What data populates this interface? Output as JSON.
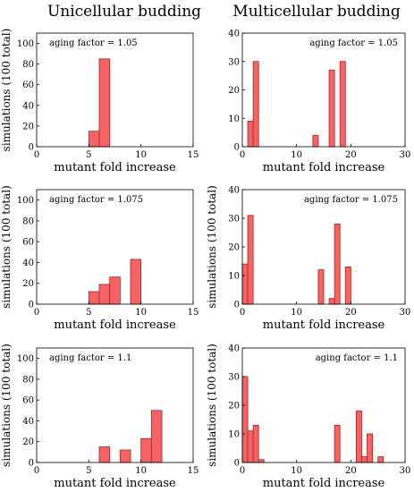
{
  "column_titles": [
    "Unicellular budding",
    "Multicellular budding"
  ],
  "colors": {
    "bar_fill": "#f46464",
    "bar_edge": "#b02020",
    "axis": "#000000"
  },
  "chart_data": [
    {
      "type": "bar",
      "panel": "unicellular-1",
      "xlabel": "mutant fold increase",
      "ylabel": "simulations (100 total)",
      "annotation": "aging factor = 1.05",
      "xlim": [
        0,
        15
      ],
      "ylim": [
        0,
        110
      ],
      "xticks": [
        0,
        5,
        10,
        15
      ],
      "yticks": [
        0,
        20,
        40,
        60,
        80,
        100
      ],
      "bin_width": 1,
      "x": [
        5.5,
        6.5
      ],
      "values": [
        15,
        85
      ]
    },
    {
      "type": "bar",
      "panel": "multicellular-1",
      "xlabel": "mutant fold increase",
      "ylabel": "",
      "annotation": "aging factor = 1.05",
      "xlim": [
        0,
        30
      ],
      "ylim": [
        0,
        40
      ],
      "xticks": [
        0,
        10,
        20,
        30
      ],
      "yticks": [
        0,
        10,
        20,
        30,
        40
      ],
      "bin_width": 1,
      "x": [
        1.5,
        2.5,
        13.5,
        16.5,
        18.5
      ],
      "values": [
        9,
        30,
        4,
        27,
        30
      ]
    },
    {
      "type": "bar",
      "panel": "unicellular-2",
      "xlabel": "mutant fold increase",
      "ylabel": "simulations (100 total)",
      "annotation": "aging factor = 1.075",
      "xlim": [
        0,
        15
      ],
      "ylim": [
        0,
        110
      ],
      "xticks": [
        0,
        5,
        10,
        15
      ],
      "yticks": [
        0,
        20,
        40,
        60,
        80,
        100
      ],
      "bin_width": 1,
      "x": [
        5.5,
        6.5,
        7.5,
        9.5
      ],
      "values": [
        12,
        19,
        26,
        43
      ]
    },
    {
      "type": "bar",
      "panel": "multicellular-2",
      "xlabel": "mutant fold increase",
      "ylabel": "simulations (100 total)",
      "annotation": "aging factor = 1.075",
      "xlim": [
        0,
        30
      ],
      "ylim": [
        0,
        40
      ],
      "xticks": [
        0,
        10,
        20,
        30
      ],
      "yticks": [
        0,
        10,
        20,
        30,
        40
      ],
      "bin_width": 1,
      "x": [
        0.5,
        1.5,
        14.5,
        16.5,
        17.5,
        19.5
      ],
      "values": [
        14,
        31,
        12,
        2,
        28,
        13
      ]
    },
    {
      "type": "bar",
      "panel": "unicellular-3",
      "xlabel": "mutant fold increase",
      "ylabel": "simulations (100 total)",
      "annotation": "aging factor = 1.1",
      "xlim": [
        0,
        15
      ],
      "ylim": [
        0,
        110
      ],
      "xticks": [
        0,
        5,
        10,
        15
      ],
      "yticks": [
        0,
        20,
        40,
        60,
        80,
        100
      ],
      "bin_width": 1,
      "x": [
        6.5,
        8.5,
        10.5,
        11.5
      ],
      "values": [
        15,
        12,
        23,
        50
      ]
    },
    {
      "type": "bar",
      "panel": "multicellular-3",
      "xlabel": "mutant fold increase",
      "ylabel": "simulations (100 total)",
      "annotation": "aging factor = 1.1",
      "xlim": [
        0,
        30
      ],
      "ylim": [
        0,
        40
      ],
      "xticks": [
        0,
        10,
        20,
        30
      ],
      "yticks": [
        0,
        10,
        20,
        30,
        40
      ],
      "bin_width": 1,
      "x": [
        0.5,
        1.5,
        2.5,
        3.5,
        17.5,
        21.5,
        22.5,
        23.5,
        25.5
      ],
      "values": [
        30,
        11,
        13,
        1,
        13,
        18,
        2,
        10,
        2
      ]
    }
  ]
}
